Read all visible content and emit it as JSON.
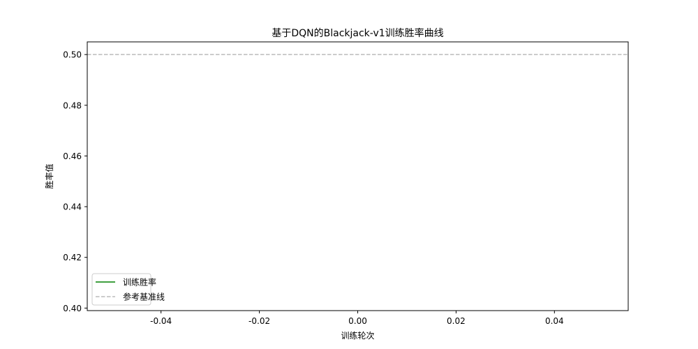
{
  "chart_data": {
    "type": "line",
    "title": "基于DQN的Blackjack-v1训练胜率曲线",
    "xlabel": "训练轮次",
    "ylabel": "胜率值",
    "xlim": [
      -0.055,
      0.055
    ],
    "ylim": [
      0.399,
      0.505
    ],
    "xticks": [
      -0.04,
      -0.02,
      0.0,
      0.02,
      0.04
    ],
    "xtick_labels": [
      "-0.04",
      "-0.02",
      "0.00",
      "0.02",
      "0.04"
    ],
    "yticks": [
      0.4,
      0.42,
      0.44,
      0.46,
      0.48,
      0.5
    ],
    "ytick_labels": [
      "0.40",
      "0.42",
      "0.44",
      "0.46",
      "0.48",
      "0.50"
    ],
    "grid": false,
    "legend_position": "lower-left",
    "series": [
      {
        "name": "训练胜率",
        "color": "#008000",
        "style": "solid",
        "x": [],
        "y": []
      },
      {
        "name": "参考基准线",
        "color": "#bbbbbb",
        "style": "dashed",
        "hline": 0.5
      }
    ]
  }
}
